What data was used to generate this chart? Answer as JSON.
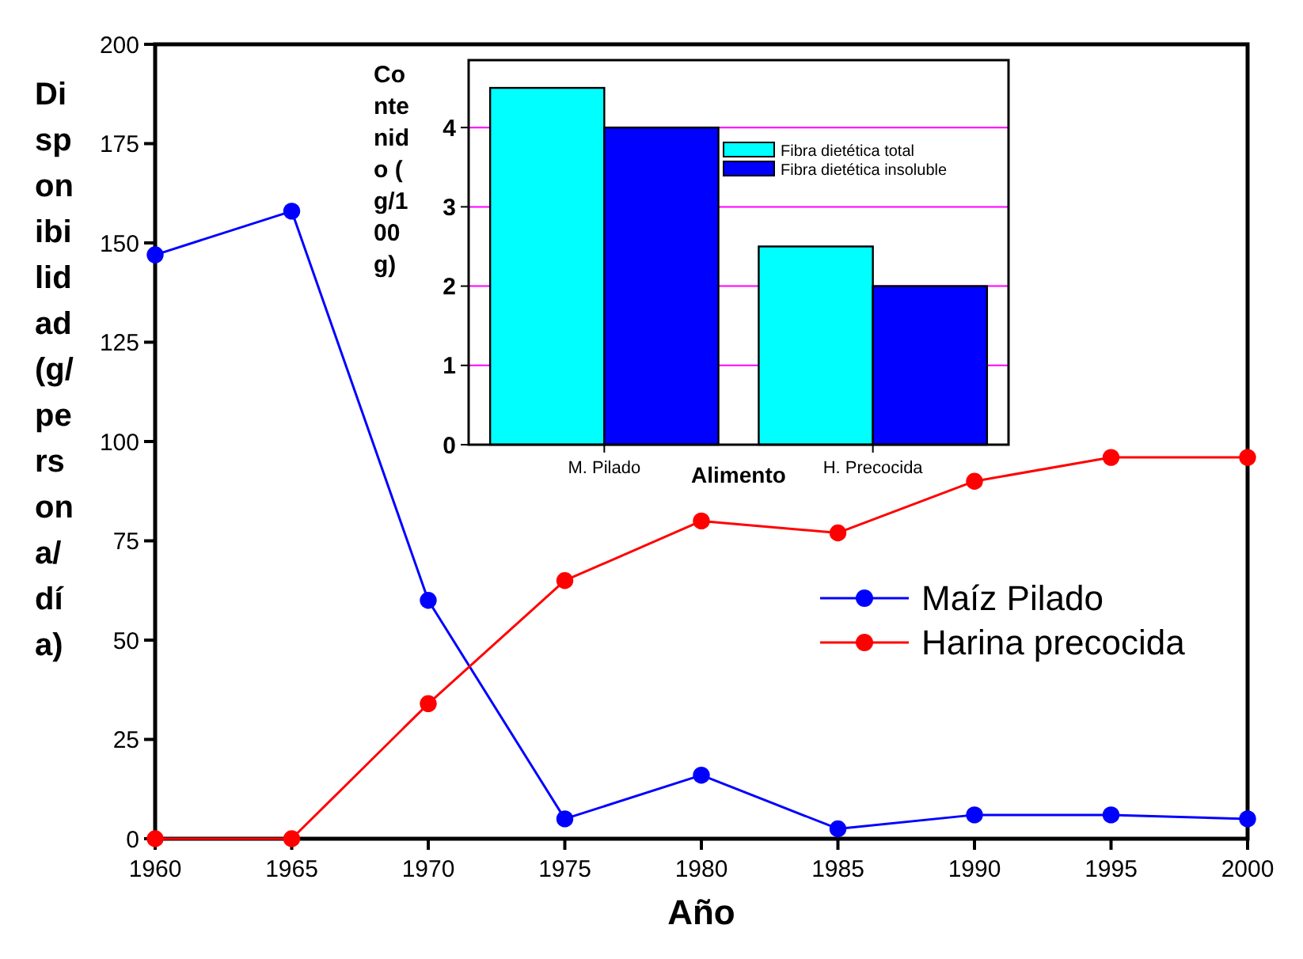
{
  "chart_data": [
    {
      "type": "line",
      "xlabel": "Año",
      "ylabel": "Disponibilidad (g/persona/día)",
      "x": [
        1960,
        1965,
        1970,
        1975,
        1980,
        1985,
        1990,
        1995,
        2000
      ],
      "xlim": [
        1960,
        2000
      ],
      "xticks": [
        1960,
        1965,
        1970,
        1975,
        1980,
        1985,
        1990,
        1995,
        2000
      ],
      "ylim": [
        0,
        200
      ],
      "yticks": [
        0,
        25,
        50,
        75,
        100,
        125,
        150,
        175,
        200
      ],
      "marker": "circle",
      "legend": "right",
      "grid": false,
      "series": [
        {
          "name": "Maíz Pilado",
          "color": "#0000ff",
          "values": [
            147,
            158,
            60,
            5,
            16,
            2.5,
            6,
            6,
            5
          ]
        },
        {
          "name": "Harina precocida",
          "color": "#ff0000",
          "values": [
            0,
            0,
            34,
            65,
            80,
            77,
            90,
            96,
            96
          ]
        }
      ]
    },
    {
      "type": "bar",
      "xlabel": "Alimento",
      "ylabel": "Contenido (g/100g)",
      "categories": [
        "M. Pilado",
        "H. Precocida"
      ],
      "ylim": [
        0,
        4.85
      ],
      "yticks": [
        0,
        1,
        2,
        3,
        4
      ],
      "grid": "y",
      "legend": "top right",
      "series": [
        {
          "name": "Fibra dietética total",
          "color": "#00ffff",
          "values": [
            4.5,
            2.5
          ]
        },
        {
          "name": "Fibra dietética insoluble",
          "color": "#0000ff",
          "values": [
            4,
            2
          ]
        }
      ]
    }
  ]
}
